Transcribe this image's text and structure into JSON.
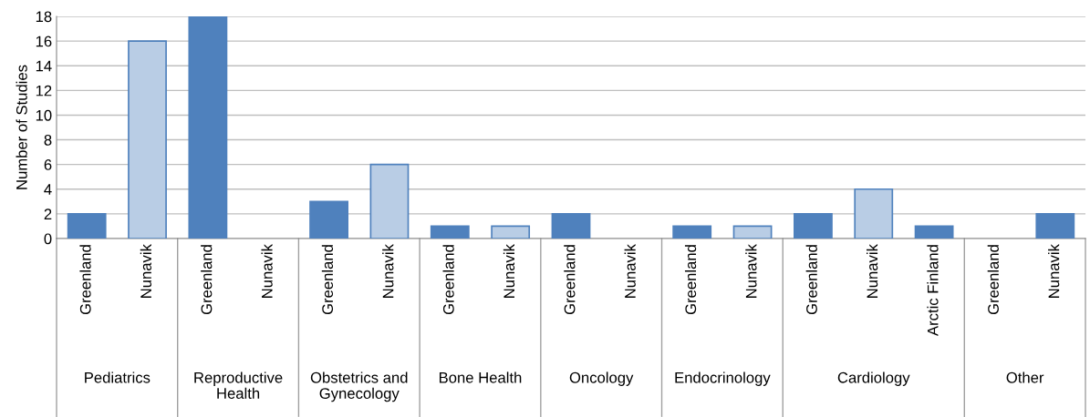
{
  "chart_data": {
    "type": "bar",
    "ylabel": "Number of Studies",
    "categories": [
      "Greenland",
      "Nunavik",
      "Greenland",
      "Nunavik",
      "Greenland",
      "Nunavik",
      "Greenland",
      "Nunavik",
      "Greenland",
      "Nunavik",
      "Greenland",
      "Nunavik",
      "Greenland",
      "Nunavik",
      "Arctic Finland",
      "Greenland",
      "Nunavik"
    ],
    "values": [
      2,
      16,
      18,
      null,
      3,
      6,
      1,
      1,
      2,
      null,
      1,
      1,
      2,
      4,
      1,
      null,
      2
    ],
    "colors": [
      "#4f81bd",
      "#b9cde5",
      "#4f81bd",
      "#b9cde5",
      "#4f81bd",
      "#b9cde5",
      "#4f81bd",
      "#b9cde5",
      "#4f81bd",
      "#b9cde5",
      "#4f81bd",
      "#b9cde5",
      "#4f81bd",
      "#b9cde5",
      "#4f81bd",
      "#4f81bd",
      "#4f81bd"
    ],
    "annotations": [
      "Pediatrics",
      "Reproductive\nHealth",
      "Obstetrics and\nGynecology",
      "Bone Health",
      "Oncology",
      "Endocrinology",
      "Cardiology",
      "Other"
    ],
    "ylim": [
      0,
      18
    ],
    "yticks": [
      0,
      2,
      4,
      6,
      8,
      10,
      12,
      14,
      16,
      18
    ],
    "grid": "y"
  }
}
